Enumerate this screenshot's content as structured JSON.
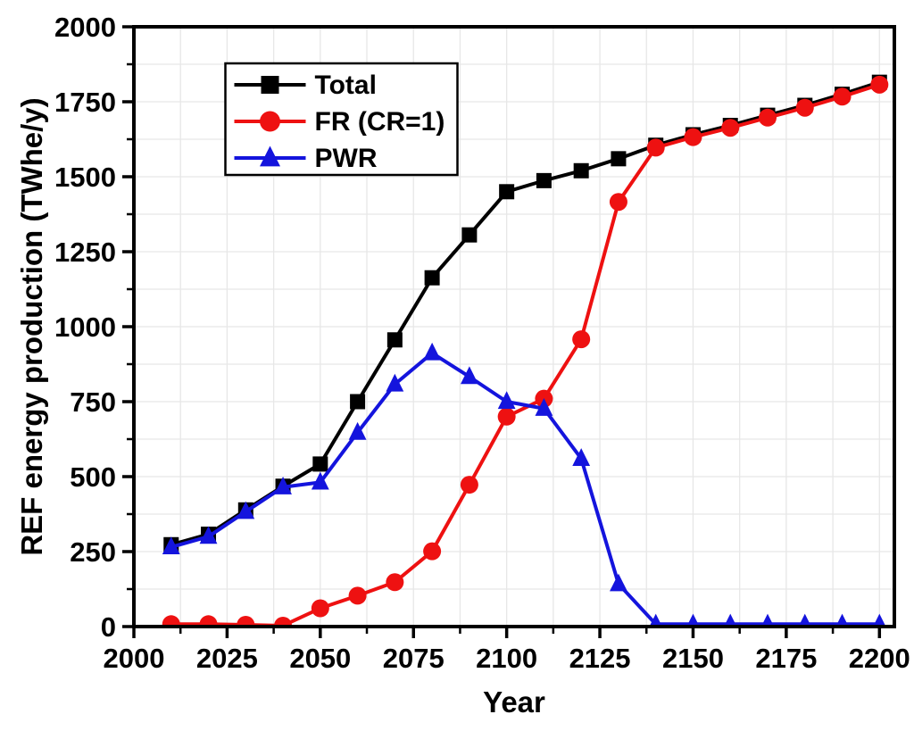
{
  "chart_data": {
    "type": "line",
    "title": "",
    "xlabel": "Year",
    "ylabel": "REF energy production (TWhe/y)",
    "xlim": [
      2000,
      2200
    ],
    "ylim": [
      0,
      2000
    ],
    "x_major_ticks": [
      2000,
      2025,
      2050,
      2075,
      2100,
      2125,
      2150,
      2175,
      2200
    ],
    "x_minor_tick_step": 12.5,
    "y_major_ticks": [
      0,
      250,
      500,
      750,
      1000,
      1250,
      1500,
      1750,
      2000
    ],
    "y_minor_tick_step": 125,
    "grid": "major-and-minor",
    "grid_color": "#e7e7e7",
    "axis_color": "#000000",
    "background_color": "#ffffff",
    "x": [
      2010,
      2020,
      2030,
      2040,
      2050,
      2060,
      2070,
      2080,
      2090,
      2100,
      2110,
      2120,
      2130,
      2140,
      2150,
      2160,
      2170,
      2180,
      2190,
      2200
    ],
    "series": [
      {
        "name": "Total",
        "color": "#000000",
        "marker": "square",
        "values": [
          273,
          308,
          389,
          468,
          542,
          750,
          956,
          1163,
          1306,
          1450,
          1487,
          1520,
          1560,
          1605,
          1640,
          1671,
          1705,
          1738,
          1775,
          1815
        ]
      },
      {
        "name": "FR (CR=1)",
        "color": "#ee1111",
        "marker": "circle",
        "values": [
          8,
          8,
          6,
          3,
          61,
          103,
          148,
          251,
          473,
          700,
          760,
          958,
          1416,
          1597,
          1632,
          1663,
          1697,
          1730,
          1767,
          1807
        ]
      },
      {
        "name": "PWR",
        "color": "#1414dd",
        "marker": "triangle",
        "values": [
          265,
          300,
          383,
          465,
          481,
          647,
          808,
          912,
          833,
          750,
          727,
          560,
          142,
          8,
          8,
          8,
          8,
          8,
          8,
          8
        ]
      }
    ],
    "legend": {
      "position": "upper-left",
      "entries": [
        "Total",
        "FR (CR=1)",
        "PWR"
      ],
      "border_color": "#000000",
      "fill_color": "#ffffff"
    }
  }
}
